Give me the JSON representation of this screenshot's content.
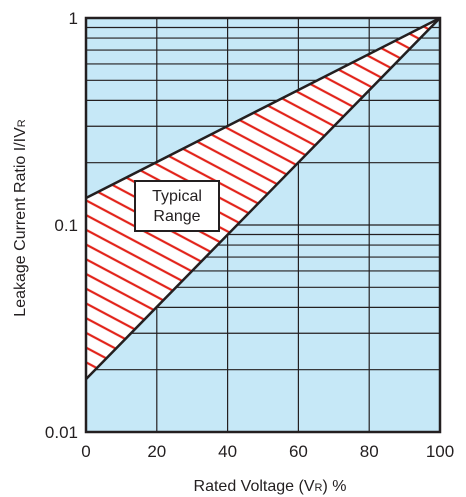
{
  "chart_data": {
    "type": "area",
    "title": "",
    "xlabel": "Rated Voltage (VR) %",
    "xlabel_parts": {
      "pre": "Rated Voltage (V",
      "sub": "R",
      "post": ") %"
    },
    "ylabel": "Leakage Current Ratio I/IVR",
    "ylabel_parts": {
      "pre": "Leakage Current Ratio I/IV",
      "sub": "R"
    },
    "xlim": [
      0,
      100
    ],
    "ylim": [
      0.01,
      1
    ],
    "yscale": "log",
    "grid": true,
    "x_ticks": [
      {
        "value": 0,
        "label": "0"
      },
      {
        "value": 20,
        "label": "20"
      },
      {
        "value": 40,
        "label": "40"
      },
      {
        "value": 60,
        "label": "60"
      },
      {
        "value": 80,
        "label": "80"
      },
      {
        "value": 100,
        "label": "100"
      }
    ],
    "y_ticks": [
      {
        "value": 0.01,
        "label": "0.01"
      },
      {
        "value": 0.1,
        "label": "0.1"
      },
      {
        "value": 1,
        "label": "1"
      }
    ],
    "series": [
      {
        "name": "upper bound",
        "x": [
          0,
          100
        ],
        "y": [
          0.135,
          1
        ]
      },
      {
        "name": "lower bound",
        "x": [
          0,
          100
        ],
        "y": [
          0.018,
          1
        ]
      }
    ],
    "annotations": [
      {
        "text_line1": "Typical",
        "text_line2": "Range"
      }
    ],
    "colors": {
      "plot_background": "#c6e8f7",
      "hatch": "#e2231a",
      "lines": "#231f20"
    }
  }
}
